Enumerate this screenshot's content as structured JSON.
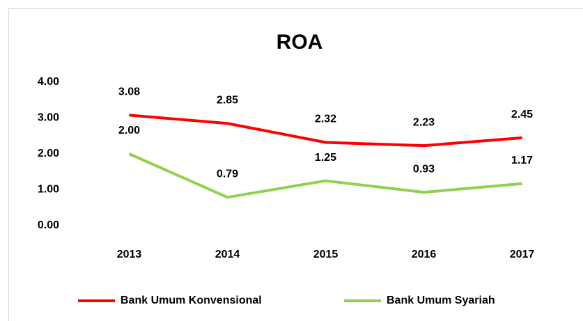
{
  "chart_data": {
    "type": "line",
    "title": "ROA",
    "categories": [
      "2013",
      "2014",
      "2015",
      "2016",
      "2017"
    ],
    "series": [
      {
        "name": "Bank Umum Konvensional",
        "color": "#ff0000",
        "values": [
          3.08,
          2.85,
          2.32,
          2.23,
          2.45
        ],
        "value_labels": [
          "3.08",
          "2.85",
          "2.32",
          "2.23",
          "2.45"
        ]
      },
      {
        "name": "Bank Umum Syariah",
        "color": "#92d050",
        "values": [
          2.0,
          0.79,
          1.25,
          0.93,
          1.17
        ],
        "value_labels": [
          "2.00",
          "0.79",
          "1.25",
          "0.93",
          "1.17"
        ]
      }
    ],
    "ylim": [
      0,
      4
    ],
    "yticks": [
      {
        "value": 0,
        "label": "0.00"
      },
      {
        "value": 1,
        "label": "1.00"
      },
      {
        "value": 2,
        "label": "2.00"
      },
      {
        "value": 3,
        "label": "3.00"
      },
      {
        "value": 4,
        "label": "4.00"
      }
    ],
    "grid": false,
    "legend": "bottom"
  }
}
